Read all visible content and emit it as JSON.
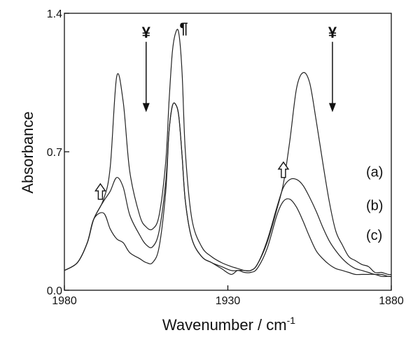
{
  "chart_data": {
    "type": "line",
    "xlabel": "Wavenumber / cm",
    "xlabel_sup": "-1",
    "ylabel": "Absorbance",
    "xlim": [
      1980,
      1880
    ],
    "ylim": [
      0.0,
      1.4
    ],
    "x_ticks": [
      {
        "value": 1980,
        "label": "1980"
      },
      {
        "value": 1930,
        "label": "1930"
      },
      {
        "value": 1880,
        "label": "1880"
      }
    ],
    "y_ticks": [
      {
        "value": 0.0,
        "label": "0.0"
      },
      {
        "value": 0.7,
        "label": "0.7"
      },
      {
        "value": 1.4,
        "label": "1.4"
      }
    ],
    "grid": false,
    "series": [
      {
        "name": "(a)",
        "x": [
          1980,
          1976,
          1973,
          1971,
          1968,
          1966,
          1964,
          1962,
          1960,
          1957,
          1955,
          1953,
          1951,
          1949,
          1948,
          1947,
          1946,
          1945,
          1944,
          1943,
          1941,
          1938,
          1935,
          1932,
          1929,
          1927,
          1925,
          1923,
          1921,
          1918,
          1915,
          1913,
          1911,
          1909,
          1907,
          1905,
          1903,
          1901,
          1899,
          1897,
          1895,
          1893,
          1891,
          1889,
          1887,
          1885,
          1883,
          1881,
          1880
        ],
        "y": [
          0.1,
          0.14,
          0.24,
          0.36,
          0.46,
          0.62,
          1.08,
          0.95,
          0.6,
          0.38,
          0.32,
          0.31,
          0.38,
          0.65,
          0.95,
          1.2,
          1.3,
          1.3,
          1.1,
          0.7,
          0.36,
          0.22,
          0.17,
          0.14,
          0.12,
          0.11,
          0.1,
          0.1,
          0.13,
          0.24,
          0.41,
          0.54,
          0.76,
          1.02,
          1.1,
          1.05,
          0.86,
          0.65,
          0.45,
          0.3,
          0.23,
          0.17,
          0.15,
          0.13,
          0.12,
          0.09,
          0.09,
          0.08,
          0.08
        ]
      },
      {
        "name": "(b)",
        "x": [
          1980,
          1976,
          1973,
          1971,
          1968,
          1966,
          1964,
          1962,
          1960,
          1957,
          1955,
          1953,
          1951,
          1949,
          1948,
          1947,
          1946,
          1945,
          1944,
          1943,
          1941,
          1938,
          1935,
          1932,
          1929,
          1927,
          1925,
          1923,
          1921,
          1918,
          1915,
          1913,
          1911,
          1909,
          1907,
          1905,
          1903,
          1901,
          1899,
          1897,
          1895,
          1893,
          1891,
          1889,
          1887,
          1885,
          1883,
          1881,
          1880
        ],
        "y": [
          0.1,
          0.14,
          0.24,
          0.36,
          0.45,
          0.5,
          0.57,
          0.52,
          0.38,
          0.28,
          0.23,
          0.22,
          0.3,
          0.55,
          0.8,
          0.93,
          0.94,
          0.88,
          0.68,
          0.45,
          0.26,
          0.17,
          0.14,
          0.12,
          0.1,
          0.1,
          0.1,
          0.1,
          0.13,
          0.25,
          0.42,
          0.52,
          0.56,
          0.56,
          0.53,
          0.47,
          0.4,
          0.32,
          0.25,
          0.2,
          0.16,
          0.13,
          0.11,
          0.1,
          0.09,
          0.08,
          0.08,
          0.07,
          0.07
        ]
      },
      {
        "name": "(c)",
        "x": [
          1980,
          1976,
          1973,
          1971,
          1968,
          1966,
          1964,
          1962,
          1960,
          1957,
          1955,
          1953,
          1951,
          1949,
          1948,
          1947,
          1946,
          1945,
          1944,
          1943,
          1941,
          1938,
          1935,
          1932,
          1929,
          1927,
          1925,
          1923,
          1921,
          1918,
          1915,
          1913,
          1911,
          1909,
          1907,
          1905,
          1903,
          1901,
          1899,
          1897,
          1895,
          1893,
          1891,
          1889,
          1887,
          1885,
          1883,
          1881,
          1880
        ],
        "y": [
          0.1,
          0.14,
          0.24,
          0.36,
          0.39,
          0.31,
          0.26,
          0.24,
          0.19,
          0.16,
          0.14,
          0.14,
          0.22,
          0.5,
          0.8,
          0.93,
          0.94,
          0.88,
          0.68,
          0.45,
          0.26,
          0.17,
          0.14,
          0.11,
          0.08,
          0.1,
          0.09,
          0.09,
          0.11,
          0.21,
          0.38,
          0.45,
          0.46,
          0.42,
          0.35,
          0.27,
          0.2,
          0.16,
          0.13,
          0.11,
          0.1,
          0.09,
          0.08,
          0.08,
          0.08,
          0.08,
          0.07,
          0.07,
          0.07
        ]
      }
    ],
    "annotations": [
      {
        "kind": "down-arrow",
        "symbol": "¥",
        "x": 1955,
        "y_from": 1.27,
        "y_to": 0.9
      },
      {
        "kind": "down-arrow",
        "symbol": "¥",
        "x": 1898,
        "y_from": 1.27,
        "y_to": 0.9
      },
      {
        "kind": "pilcrow",
        "symbol": "¶",
        "x": 1943.5,
        "y": 1.34
      },
      {
        "kind": "hollow-up-arrow",
        "x": 1969,
        "y": 0.46
      },
      {
        "kind": "hollow-up-arrow",
        "x": 1913,
        "y": 0.57
      }
    ]
  }
}
